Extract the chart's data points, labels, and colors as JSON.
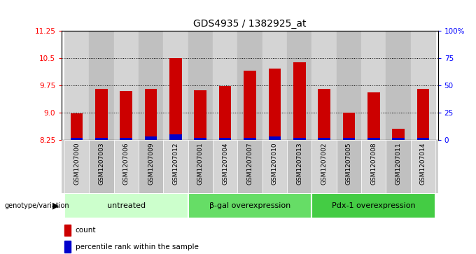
{
  "title": "GDS4935 / 1382925_at",
  "samples": [
    "GSM1207000",
    "GSM1207003",
    "GSM1207006",
    "GSM1207009",
    "GSM1207012",
    "GSM1207001",
    "GSM1207004",
    "GSM1207007",
    "GSM1207010",
    "GSM1207013",
    "GSM1207002",
    "GSM1207005",
    "GSM1207008",
    "GSM1207011",
    "GSM1207014"
  ],
  "counts": [
    8.98,
    9.65,
    9.58,
    9.65,
    10.5,
    9.6,
    9.72,
    10.15,
    10.2,
    10.38,
    9.65,
    9.0,
    9.55,
    8.55,
    9.65
  ],
  "percentile_ranks": [
    2,
    2,
    2,
    3,
    5,
    2,
    2,
    2,
    3,
    2,
    2,
    2,
    2,
    2,
    2
  ],
  "groups": [
    {
      "label": "untreated",
      "indices": [
        0,
        1,
        2,
        3,
        4
      ],
      "color": "#ccffcc"
    },
    {
      "label": "β-gal overexpression",
      "indices": [
        5,
        6,
        7,
        8,
        9
      ],
      "color": "#66dd66"
    },
    {
      "label": "Pdx-1 overexpression",
      "indices": [
        10,
        11,
        12,
        13,
        14
      ],
      "color": "#44cc44"
    }
  ],
  "ylim_left": [
    8.25,
    11.25
  ],
  "ylim_right": [
    0,
    100
  ],
  "yticks_left": [
    8.25,
    9.0,
    9.75,
    10.5,
    11.25
  ],
  "yticks_right": [
    0,
    25,
    50,
    75,
    100
  ],
  "ytick_labels_right": [
    "0",
    "25",
    "50",
    "75",
    "100%"
  ],
  "bar_color": "#cc0000",
  "percentile_color": "#0000cc",
  "col_bg_odd": "#d4d4d4",
  "col_bg_even": "#c0c0c0",
  "baseline": 8.25
}
